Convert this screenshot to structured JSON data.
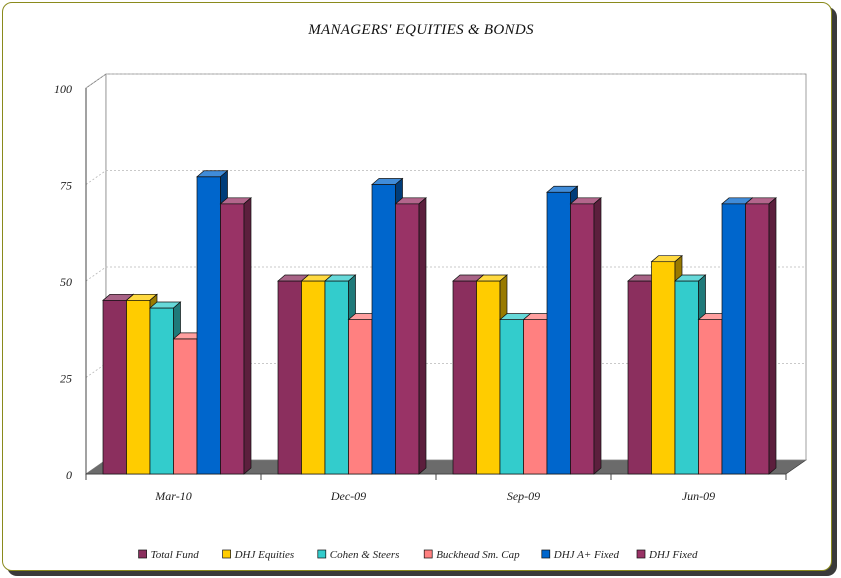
{
  "chart_data": {
    "type": "bar",
    "title": "MANAGERS' EQUITIES & BONDS",
    "categories": [
      "Mar-10",
      "Dec-09",
      "Sep-09",
      "Jun-09"
    ],
    "ylim": [
      0,
      100
    ],
    "yticks": [
      0,
      25,
      50,
      75,
      100
    ],
    "xlabel": "",
    "ylabel": "",
    "grid": true,
    "legend_position": "bottom",
    "series": [
      {
        "name": "Total Fund",
        "color": "#8B2F5E",
        "values": [
          45,
          50,
          50,
          50
        ]
      },
      {
        "name": "DHJ Equities",
        "color": "#FFCC00",
        "values": [
          45,
          50,
          50,
          55
        ]
      },
      {
        "name": "Cohen & Steers",
        "color": "#33CCCC",
        "values": [
          43,
          50,
          40,
          50
        ]
      },
      {
        "name": "Buckhead Sm. Cap",
        "color": "#FF8080",
        "values": [
          35,
          40,
          40,
          40
        ]
      },
      {
        "name": "DHJ A+ Fixed",
        "color": "#0066CC",
        "values": [
          77,
          75,
          73,
          70
        ]
      },
      {
        "name": "DHJ Fixed",
        "color": "#993366",
        "values": [
          70,
          70,
          70,
          70
        ]
      }
    ]
  }
}
